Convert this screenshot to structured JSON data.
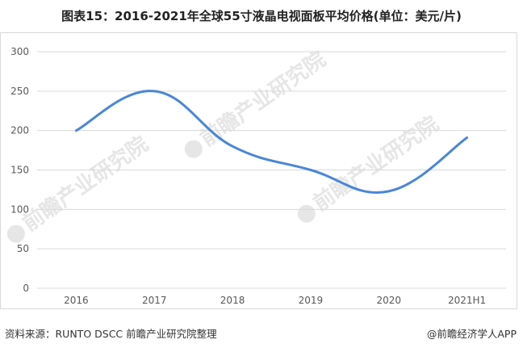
{
  "title": "图表15：2016-2021年全球55寸液晶电视面板平均价格(单位：美元/片)",
  "footer": {
    "source": "资料来源：RUNTO DSCC 前瞻产业研究院整理",
    "brand": "@前瞻经济学人APP"
  },
  "watermark": {
    "text": "前瞻产业研究院"
  },
  "chart_data": {
    "type": "line",
    "categories": [
      "2016",
      "2017",
      "2018",
      "2019",
      "2020",
      "2021H1"
    ],
    "series": [
      {
        "values": [
          200,
          250,
          180,
          150,
          123,
          191
        ]
      }
    ],
    "ylim": [
      0,
      300
    ],
    "yticks": [
      0,
      50,
      100,
      150,
      200,
      250,
      300
    ],
    "grid": true,
    "legend": "none",
    "line_color": "#4a86d6",
    "grid_color": "#d9d9d9"
  }
}
